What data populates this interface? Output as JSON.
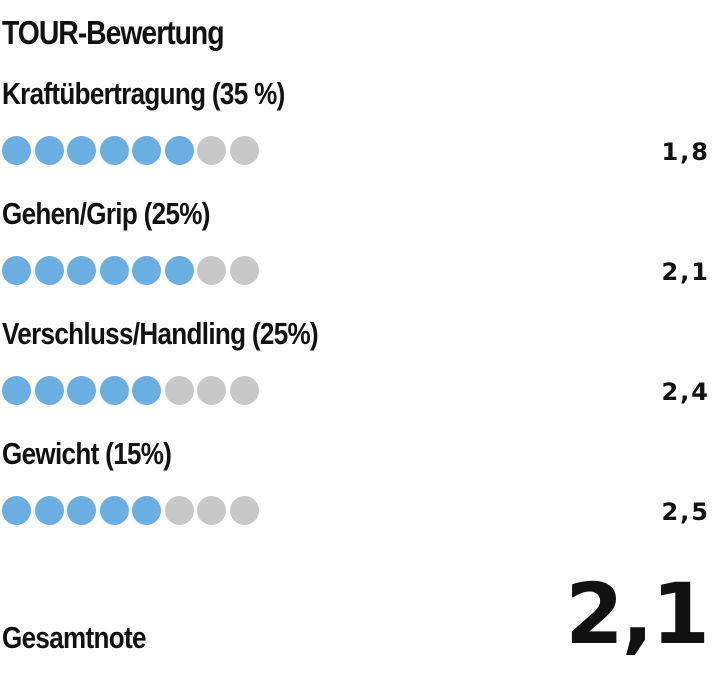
{
  "title": "TOUR-Bewertung",
  "max_dots": 8,
  "colors": {
    "filled_dot": "#6aaee2",
    "empty_dot": "#c8c8c8",
    "text": "#111111"
  },
  "criteria": [
    {
      "label": "Kraftübertragung (35 %)",
      "filled": 6,
      "score": "1,8"
    },
    {
      "label": "Gehen/Grip (25%)",
      "filled": 6,
      "score": "2,1"
    },
    {
      "label": "Verschluss/Handling (25%)",
      "filled": 5,
      "score": "2,4"
    },
    {
      "label": "Gewicht (15%)",
      "filled": 5,
      "score": "2,5"
    }
  ],
  "total": {
    "label": "Gesamtnote",
    "value": "2,1"
  }
}
